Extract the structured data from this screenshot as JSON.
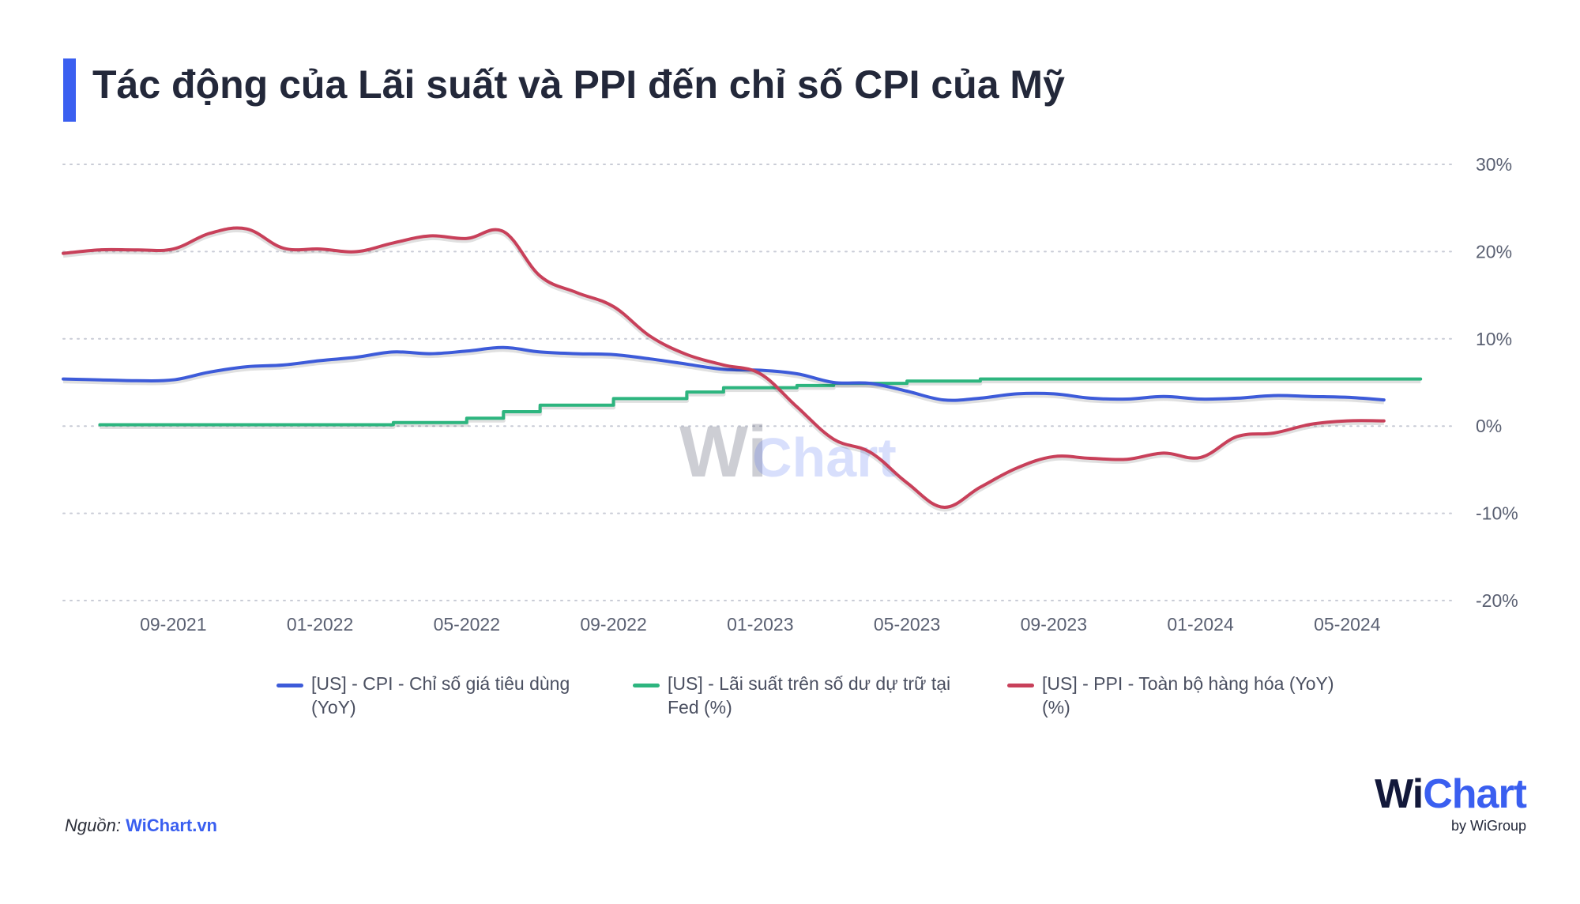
{
  "title": "Tác động của Lãi suất và PPI đến chỉ số CPI của Mỹ",
  "watermark": {
    "w": "Wi",
    "chart": "Chart"
  },
  "source": {
    "label": "Nguồn:",
    "link": "WiChart.vn"
  },
  "logo": {
    "w": "Wi",
    "chart": "Chart",
    "sub": "by WiGroup"
  },
  "colors": {
    "accent": "#3a5ff0",
    "cpi": "#3d5bd9",
    "fed": "#2db57f",
    "ppi": "#c8405a",
    "grid": "#c9ccd6",
    "tick": "#5a6072"
  },
  "chart_data": {
    "type": "line",
    "title": "Tác động của Lãi suất và PPI đến chỉ số CPI của Mỹ",
    "xlabel": "",
    "ylabel": "",
    "x_start": "2021-06",
    "x_end": "2024-07",
    "x_ticks": [
      "09-2021",
      "01-2022",
      "05-2022",
      "09-2022",
      "01-2023",
      "05-2023",
      "09-2023",
      "01-2024",
      "05-2024"
    ],
    "y_ticks": [
      "30%",
      "20%",
      "10%",
      "0%",
      "-10%",
      "-20%"
    ],
    "ylim": [
      -20,
      30
    ],
    "grid": true,
    "legend_position": "bottom",
    "series": [
      {
        "name": "[US] - CPI - Chỉ số giá tiêu dùng (YoY)",
        "color": "#3d5bd9",
        "step": false,
        "x": [
          "2021-06",
          "2021-07",
          "2021-08",
          "2021-09",
          "2021-10",
          "2021-11",
          "2021-12",
          "2022-01",
          "2022-02",
          "2022-03",
          "2022-04",
          "2022-05",
          "2022-06",
          "2022-07",
          "2022-08",
          "2022-09",
          "2022-10",
          "2022-11",
          "2022-12",
          "2023-01",
          "2023-02",
          "2023-03",
          "2023-04",
          "2023-05",
          "2023-06",
          "2023-07",
          "2023-08",
          "2023-09",
          "2023-10",
          "2023-11",
          "2023-12",
          "2024-01",
          "2024-02",
          "2024-03",
          "2024-04",
          "2024-05",
          "2024-06"
        ],
        "values": [
          5.4,
          5.3,
          5.2,
          5.3,
          6.2,
          6.8,
          7.0,
          7.5,
          7.9,
          8.5,
          8.3,
          8.6,
          9.0,
          8.5,
          8.3,
          8.2,
          7.7,
          7.1,
          6.5,
          6.4,
          6.0,
          5.0,
          4.9,
          4.0,
          3.0,
          3.2,
          3.7,
          3.7,
          3.2,
          3.1,
          3.4,
          3.1,
          3.2,
          3.5,
          3.4,
          3.3,
          3.0
        ]
      },
      {
        "name": "[US] - Lãi suất trên số dư dự trữ tại Fed (%)",
        "color": "#2db57f",
        "step": true,
        "x": [
          "2021-07",
          "2022-03",
          "2022-05",
          "2022-06",
          "2022-07",
          "2022-09",
          "2022-11",
          "2022-12",
          "2023-02",
          "2023-03",
          "2023-05",
          "2023-07",
          "2024-07"
        ],
        "values": [
          0.15,
          0.4,
          0.9,
          1.65,
          2.4,
          3.15,
          3.9,
          4.4,
          4.65,
          4.9,
          5.15,
          5.4,
          5.4
        ]
      },
      {
        "name": "[US] - PPI - Toàn bộ hàng hóa (YoY) (%)",
        "color": "#c8405a",
        "step": false,
        "x": [
          "2021-06",
          "2021-07",
          "2021-08",
          "2021-09",
          "2021-10",
          "2021-11",
          "2021-12",
          "2022-01",
          "2022-02",
          "2022-03",
          "2022-04",
          "2022-05",
          "2022-06",
          "2022-07",
          "2022-08",
          "2022-09",
          "2022-10",
          "2022-11",
          "2022-12",
          "2023-01",
          "2023-02",
          "2023-03",
          "2023-04",
          "2023-05",
          "2023-06",
          "2023-07",
          "2023-08",
          "2023-09",
          "2023-10",
          "2023-11",
          "2023-12",
          "2024-01",
          "2024-02",
          "2024-03",
          "2024-04",
          "2024-05",
          "2024-06"
        ],
        "values": [
          19.8,
          20.2,
          20.2,
          20.3,
          22.1,
          22.6,
          20.4,
          20.3,
          20.0,
          21.0,
          21.8,
          21.5,
          22.3,
          17.2,
          15.3,
          13.7,
          10.3,
          8.2,
          7.0,
          6.0,
          2.2,
          -1.5,
          -3.0,
          -6.5,
          -9.3,
          -7.0,
          -4.8,
          -3.5,
          -3.7,
          -3.8,
          -3.1,
          -3.6,
          -1.2,
          -0.8,
          0.2,
          0.6,
          0.6
        ]
      }
    ]
  }
}
